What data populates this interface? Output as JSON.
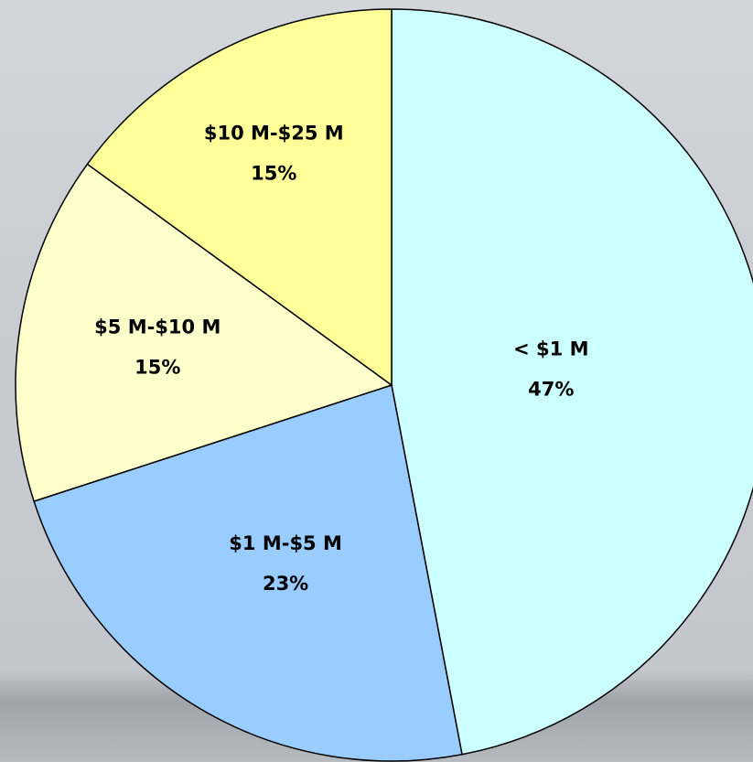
{
  "chart_data": {
    "type": "pie",
    "categories": [
      "< $1 M",
      "$1 M-$5 M",
      "$5 M-$10 M",
      "$10 M-$25 M"
    ],
    "values": [
      47,
      23,
      15,
      15
    ],
    "value_labels": [
      "47%",
      "23%",
      "15%",
      "15%"
    ],
    "colors": [
      "#ccffff",
      "#99ccff",
      "#ffffcc",
      "#ffff99"
    ]
  }
}
